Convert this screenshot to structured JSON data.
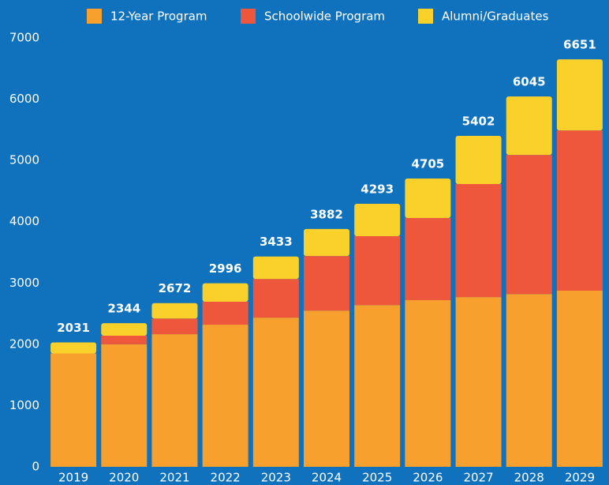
{
  "chart_data": {
    "type": "stacked_bar",
    "categories": [
      "2019",
      "2020",
      "2021",
      "2022",
      "2023",
      "2024",
      "2025",
      "2026",
      "2027",
      "2028",
      "2029"
    ],
    "series": [
      {
        "name": "12-Year Program",
        "color": "#f7a02e",
        "values": [
          1850,
          2000,
          2165,
          2320,
          2435,
          2550,
          2640,
          2720,
          2770,
          2820,
          2875
        ]
      },
      {
        "name": "Schoolwide Program",
        "color": "#ef573c",
        "values": [
          0,
          140,
          255,
          375,
          630,
          890,
          1125,
          1340,
          1845,
          2270,
          2615
        ]
      },
      {
        "name": "Alumni/Graduates",
        "color": "#f9d12a",
        "values": [
          181,
          204,
          252,
          301,
          368,
          442,
          528,
          645,
          787,
          955,
          1161
        ]
      }
    ],
    "totals": [
      2031,
      2344,
      2672,
      2996,
      3433,
      3882,
      4293,
      4705,
      5402,
      6045,
      6651
    ],
    "ylim": [
      0,
      7000
    ],
    "yticks": [
      0,
      1000,
      2000,
      3000,
      4000,
      5000,
      6000,
      7000
    ],
    "legend": "top",
    "background": "#1072bc"
  }
}
